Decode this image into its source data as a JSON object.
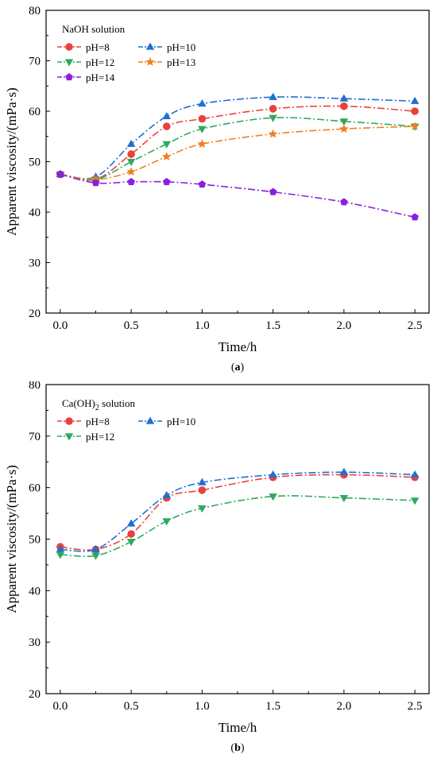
{
  "chart_data": [
    {
      "type": "line",
      "xlabel": "Time/h",
      "ylabel": "Apparent viscosity/(mPa·s)",
      "xlim": [
        -0.1,
        2.6
      ],
      "ylim": [
        20,
        80
      ],
      "xticks": [
        "0.0",
        "0.5",
        "1.0",
        "1.5",
        "2.0",
        "2.5"
      ],
      "yticks": [
        "20",
        "30",
        "40",
        "50",
        "60",
        "70",
        "80"
      ],
      "legend_title": "NaOH solution",
      "legend_position": "top-left",
      "caption": "(a)",
      "x": [
        0,
        0.25,
        0.5,
        0.75,
        1.0,
        1.5,
        2.0,
        2.5
      ],
      "series": [
        {
          "name": "pH=8",
          "color": "#e8413c",
          "marker": "circle",
          "values": [
            47.5,
            46.5,
            51.5,
            57,
            58.5,
            60.5,
            61,
            60
          ]
        },
        {
          "name": "pH=10",
          "color": "#1f6fd1",
          "marker": "triangle-up",
          "values": [
            47.5,
            47,
            53.5,
            59,
            61.5,
            62.8,
            62.5,
            62
          ]
        },
        {
          "name": "pH=12",
          "color": "#2eaa5c",
          "marker": "triangle-down",
          "values": [
            47.5,
            46.5,
            50,
            53.5,
            56.5,
            58.7,
            58,
            57
          ]
        },
        {
          "name": "pH=13",
          "color": "#f07f1e",
          "marker": "star",
          "values": [
            47.5,
            46.5,
            48,
            51,
            53.5,
            55.5,
            56.5,
            57
          ]
        },
        {
          "name": "pH=14",
          "color": "#8a1fe0",
          "marker": "pentagon",
          "values": [
            47.5,
            45.8,
            46,
            46,
            45.5,
            44,
            42,
            39
          ]
        }
      ]
    },
    {
      "type": "line",
      "xlabel": "Time/h",
      "ylabel": "Apparent viscosity/(mPa·s)",
      "xlim": [
        -0.1,
        2.6
      ],
      "ylim": [
        20,
        80
      ],
      "xticks": [
        "0.0",
        "0.5",
        "1.0",
        "1.5",
        "2.0",
        "2.5"
      ],
      "yticks": [
        "20",
        "30",
        "40",
        "50",
        "60",
        "70",
        "80"
      ],
      "legend_title": "Ca(OH)",
      "legend_title_sub": "2",
      "legend_title_suffix": " solution",
      "legend_position": "top-left",
      "caption": "(b)",
      "x": [
        0,
        0.25,
        0.5,
        0.75,
        1.0,
        1.5,
        2.0,
        2.5
      ],
      "series": [
        {
          "name": "pH=8",
          "color": "#e8413c",
          "marker": "circle",
          "values": [
            48.5,
            48,
            51,
            58,
            59.5,
            62,
            62.5,
            62
          ]
        },
        {
          "name": "pH=10",
          "color": "#1f6fd1",
          "marker": "triangle-up",
          "values": [
            48,
            48,
            53,
            58.5,
            61,
            62.5,
            63,
            62.5
          ]
        },
        {
          "name": "pH=12",
          "color": "#2eaa5c",
          "marker": "triangle-down",
          "values": [
            47,
            46.8,
            49.5,
            53.5,
            56,
            58.3,
            58,
            57.5
          ]
        }
      ]
    }
  ]
}
